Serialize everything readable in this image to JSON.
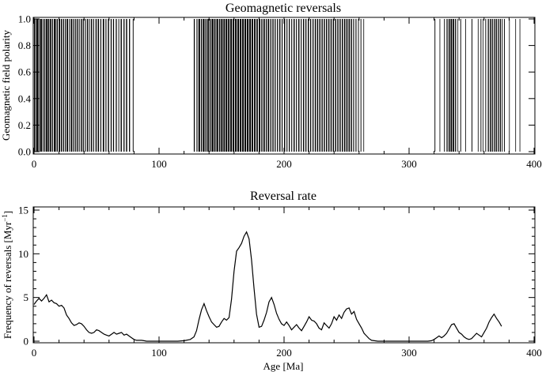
{
  "chart_data": [
    {
      "type": "bar",
      "title": "Geomagnetic reversals",
      "xlabel": "",
      "ylabel": "Geomagnetic field polarity",
      "xlim": [
        0,
        400
      ],
      "ylim": [
        0,
        1
      ],
      "x_ticks": [
        "0",
        "100",
        "200",
        "300",
        "400"
      ],
      "y_ticks": [
        "0.0",
        "0.2",
        "0.4",
        "0.6",
        "0.8",
        "1.0"
      ],
      "normal_polarity_intervals": [
        [
          0.0,
          0.78
        ],
        [
          1.1,
          1.5
        ],
        [
          2.0,
          3.2
        ],
        [
          3.5,
          4.2
        ],
        [
          4.8,
          6.3
        ],
        [
          6.9,
          7.6
        ],
        [
          8.2,
          9.0
        ],
        [
          9.6,
          10.8
        ],
        [
          11.2,
          12.2
        ],
        [
          12.8,
          13.9
        ],
        [
          14.5,
          15.2
        ],
        [
          15.9,
          17.4
        ],
        [
          18.1,
          19.0
        ],
        [
          19.8,
          20.9
        ],
        [
          21.5,
          22.4
        ],
        [
          23.2,
          24.0
        ],
        [
          24.7,
          25.4
        ],
        [
          26.1,
          27.2
        ],
        [
          28.0,
          28.6
        ],
        [
          29.4,
          30.5
        ],
        [
          31.1,
          31.8
        ],
        [
          32.6,
          33.4
        ],
        [
          34.1,
          35.0
        ],
        [
          35.8,
          36.5
        ],
        [
          37.4,
          38.3
        ],
        [
          39.0,
          39.8
        ],
        [
          40.7,
          41.4
        ],
        [
          42.3,
          43.2
        ],
        [
          44.0,
          44.6
        ],
        [
          45.5,
          46.4
        ],
        [
          47.3,
          48.0
        ],
        [
          49.2,
          50.1
        ],
        [
          51.0,
          52.0
        ],
        [
          53.1,
          53.8
        ],
        [
          55.0,
          56.1
        ],
        [
          57.2,
          57.9
        ],
        [
          59.1,
          60.0
        ],
        [
          61.3,
          62.1
        ],
        [
          63.2,
          64.0
        ],
        [
          65.4,
          66.2
        ],
        [
          67.5,
          68.1
        ],
        [
          69.3,
          70.2
        ],
        [
          71.6,
          72.4
        ],
        [
          73.6,
          74.5
        ],
        [
          76.0,
          76.8
        ],
        [
          79.0,
          79.6
        ],
        [
          127.8,
          128.6
        ],
        [
          130.0,
          130.7
        ],
        [
          131.5,
          132.8
        ],
        [
          133.5,
          134.3
        ],
        [
          135.0,
          136.4
        ],
        [
          137.1,
          138.0
        ],
        [
          138.6,
          139.8
        ],
        [
          140.4,
          141.3
        ],
        [
          142.0,
          143.5
        ],
        [
          144.1,
          145.2
        ],
        [
          145.9,
          147.3
        ],
        [
          148.0,
          149.0
        ],
        [
          149.6,
          150.9
        ],
        [
          151.5,
          152.7
        ],
        [
          153.3,
          154.6
        ],
        [
          155.2,
          156.4
        ],
        [
          157.0,
          158.3
        ],
        [
          158.9,
          160.2
        ],
        [
          160.8,
          162.1
        ],
        [
          162.7,
          164.0
        ],
        [
          164.6,
          165.9
        ],
        [
          166.5,
          167.8
        ],
        [
          168.4,
          169.7
        ],
        [
          170.3,
          171.6
        ],
        [
          172.2,
          173.5
        ],
        [
          174.1,
          175.3
        ],
        [
          176.0,
          177.2
        ],
        [
          177.9,
          179.0
        ],
        [
          179.8,
          181.0
        ],
        [
          181.8,
          182.7
        ],
        [
          183.5,
          184.6
        ],
        [
          185.4,
          186.2
        ],
        [
          187.0,
          188.1
        ],
        [
          189.0,
          189.8
        ],
        [
          190.7,
          191.6
        ],
        [
          192.5,
          193.3
        ],
        [
          194.4,
          195.2
        ],
        [
          196.2,
          197.1
        ],
        [
          198.1,
          198.8
        ],
        [
          200.0,
          200.9
        ],
        [
          202.0,
          202.7
        ],
        [
          203.8,
          204.6
        ],
        [
          205.8,
          206.5
        ],
        [
          207.6,
          208.5
        ],
        [
          209.6,
          210.3
        ],
        [
          211.4,
          212.3
        ],
        [
          213.4,
          214.1
        ],
        [
          215.2,
          216.1
        ],
        [
          217.1,
          217.9
        ],
        [
          219.0,
          219.9
        ],
        [
          220.9,
          221.7
        ],
        [
          222.8,
          223.6
        ],
        [
          224.6,
          225.5
        ],
        [
          226.4,
          227.3
        ],
        [
          228.2,
          229.1
        ],
        [
          230.0,
          230.9
        ],
        [
          231.8,
          232.7
        ],
        [
          233.6,
          234.5
        ],
        [
          235.4,
          236.3
        ],
        [
          237.2,
          238.1
        ],
        [
          239.0,
          239.9
        ],
        [
          240.8,
          241.7
        ],
        [
          242.6,
          243.5
        ],
        [
          244.4,
          245.3
        ],
        [
          246.2,
          247.1
        ],
        [
          248.0,
          249.0
        ],
        [
          249.8,
          250.8
        ],
        [
          251.6,
          252.6
        ],
        [
          253.4,
          254.3
        ],
        [
          255.3,
          256.0
        ],
        [
          257.2,
          257.9
        ],
        [
          259.2,
          259.8
        ],
        [
          261.2,
          261.8
        ],
        [
          263.5,
          264.0
        ],
        [
          320.4,
          321.0
        ],
        [
          324.4,
          324.9
        ],
        [
          328.0,
          328.6
        ],
        [
          330.0,
          330.8
        ],
        [
          331.6,
          332.6
        ],
        [
          333.2,
          334.4
        ],
        [
          335.0,
          336.1
        ],
        [
          336.8,
          337.6
        ],
        [
          338.8,
          339.3
        ],
        [
          341.0,
          341.6
        ],
        [
          345.0,
          345.5
        ],
        [
          350.0,
          350.6
        ],
        [
          355.0,
          355.5
        ],
        [
          357.2,
          357.8
        ],
        [
          359.0,
          359.4
        ],
        [
          361.0,
          361.6
        ],
        [
          363.0,
          363.8
        ],
        [
          364.6,
          365.5
        ],
        [
          366.2,
          367.0
        ],
        [
          367.8,
          368.6
        ],
        [
          369.3,
          370.2
        ],
        [
          371.0,
          371.8
        ],
        [
          372.6,
          373.4
        ],
        [
          374.2,
          374.8
        ],
        [
          376.0,
          376.6
        ],
        [
          380.0,
          380.4
        ],
        [
          385.0,
          385.4
        ],
        [
          388.4,
          388.8
        ]
      ]
    },
    {
      "type": "line",
      "title": "Reversal rate",
      "xlabel": "Age [Ma]",
      "ylabel_main": "Frequency of reversals [Myr",
      "ylabel_sup": "−1",
      "ylabel_close": "]",
      "xlim": [
        0,
        400
      ],
      "ylim": [
        0,
        15
      ],
      "x_ticks": [
        "0",
        "100",
        "200",
        "300",
        "400"
      ],
      "y_ticks": [
        "0",
        "5",
        "10",
        "15"
      ],
      "series": [
        {
          "x": [
            0,
            2,
            4,
            6,
            8,
            10,
            12,
            14,
            16,
            18,
            20,
            22,
            24,
            26,
            28,
            30,
            32,
            34,
            36,
            38,
            40,
            42,
            44,
            46,
            48,
            50,
            52,
            54,
            56,
            58,
            60,
            62,
            64,
            66,
            68,
            70,
            72,
            74,
            76,
            78,
            80,
            82,
            84,
            86,
            88,
            90,
            95,
            100,
            105,
            110,
            115,
            120,
            125,
            128,
            130,
            132,
            134,
            136,
            138,
            140,
            142,
            144,
            146,
            148,
            150,
            152,
            154,
            156,
            158,
            160,
            162,
            164,
            166,
            168,
            170,
            172,
            174,
            176,
            178,
            180,
            182,
            184,
            186,
            188,
            190,
            192,
            194,
            196,
            198,
            200,
            202,
            204,
            206,
            208,
            210,
            212,
            214,
            216,
            218,
            220,
            222,
            224,
            226,
            228,
            230,
            232,
            234,
            236,
            238,
            240,
            242,
            244,
            246,
            248,
            250,
            252,
            254,
            256,
            258,
            260,
            262,
            264,
            266,
            268,
            270,
            275,
            280,
            290,
            300,
            310,
            315,
            318,
            320,
            322,
            324,
            326,
            328,
            330,
            332,
            334,
            336,
            338,
            340,
            342,
            344,
            346,
            348,
            350,
            352,
            354,
            356,
            358,
            360,
            362,
            364,
            366,
            368,
            370,
            372,
            374
          ],
          "y": [
            4.2,
            4.6,
            4.9,
            4.6,
            4.9,
            5.3,
            4.5,
            4.7,
            4.4,
            4.3,
            4.0,
            4.1,
            3.8,
            3.0,
            2.6,
            2.1,
            1.8,
            1.9,
            2.1,
            2.0,
            1.7,
            1.3,
            1.0,
            0.9,
            1.0,
            1.3,
            1.2,
            1.0,
            0.8,
            0.7,
            0.6,
            0.8,
            1.0,
            0.8,
            0.9,
            1.0,
            0.7,
            0.8,
            0.6,
            0.4,
            0.2,
            0.1,
            0.1,
            0.1,
            0.05,
            0.0,
            0.0,
            0.0,
            0.0,
            0.0,
            0.0,
            0.05,
            0.2,
            0.5,
            1.2,
            2.5,
            3.6,
            4.3,
            3.5,
            2.8,
            2.2,
            1.9,
            1.6,
            1.7,
            2.2,
            2.6,
            2.4,
            2.7,
            4.8,
            8.0,
            10.3,
            10.7,
            11.2,
            12.0,
            12.5,
            11.7,
            9.3,
            6.0,
            3.1,
            1.6,
            1.7,
            2.4,
            3.3,
            4.5,
            5.0,
            4.2,
            3.2,
            2.5,
            2.0,
            1.8,
            2.2,
            1.8,
            1.3,
            1.6,
            1.9,
            1.5,
            1.2,
            1.7,
            2.2,
            2.8,
            2.4,
            2.3,
            2.0,
            1.5,
            1.3,
            2.1,
            1.8,
            1.5,
            2.0,
            2.8,
            2.4,
            3.0,
            2.6,
            3.3,
            3.7,
            3.8,
            3.1,
            3.4,
            2.5,
            2.0,
            1.5,
            0.9,
            0.6,
            0.3,
            0.1,
            0.0,
            0.0,
            0.0,
            0.0,
            0.0,
            0.0,
            0.05,
            0.2,
            0.4,
            0.6,
            0.4,
            0.6,
            0.9,
            1.4,
            1.9,
            2.0,
            1.5,
            1.0,
            0.8,
            0.5,
            0.3,
            0.2,
            0.3,
            0.6,
            0.9,
            0.7,
            0.5,
            1.0,
            1.5,
            2.2,
            2.7,
            3.1,
            2.6,
            2.2,
            1.7
          ]
        }
      ]
    }
  ]
}
